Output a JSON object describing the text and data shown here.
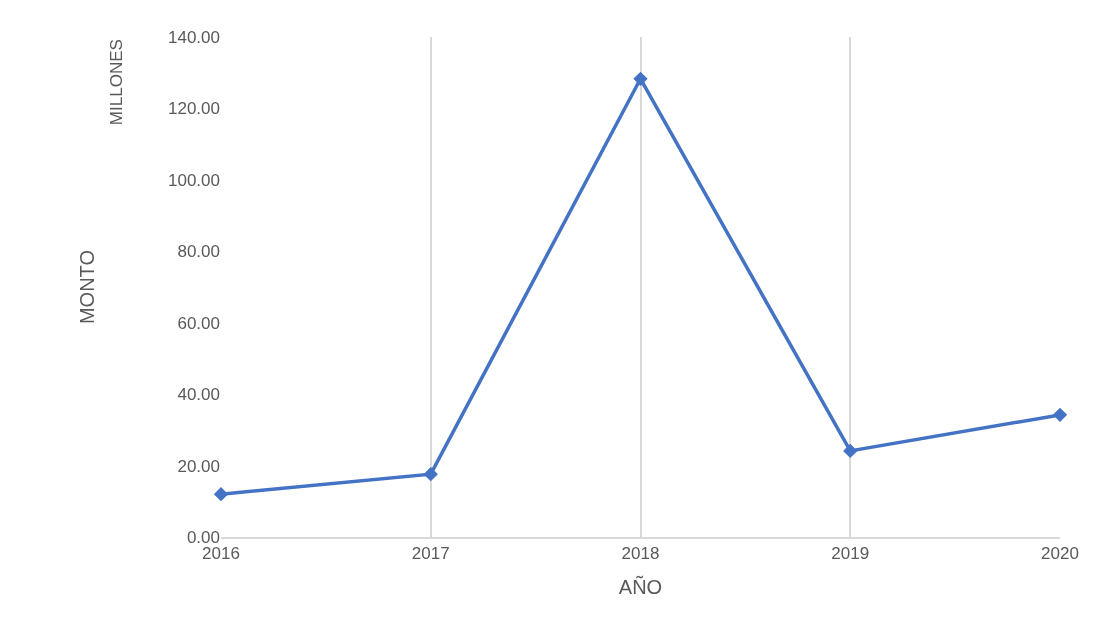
{
  "chart_data": {
    "type": "line",
    "xlabel": "AÑO",
    "ylabel": "MONTO",
    "annotations": [
      "MILLONES"
    ],
    "x": [
      2016,
      2017,
      2018,
      2019,
      2020
    ],
    "series": [
      {
        "color": "#4472c4",
        "values": [
          12.0,
          17.6,
          128.3,
          24.1,
          34.2
        ]
      }
    ],
    "xlim": [
      2016,
      2020
    ],
    "xticks": [
      2016,
      2017,
      2018,
      2019,
      2020
    ],
    "ylim": [
      0,
      140
    ],
    "yticks": [
      {
        "value": 0,
        "label": "0.00"
      },
      {
        "value": 20,
        "label": "20.00"
      },
      {
        "value": 40,
        "label": "40.00"
      },
      {
        "value": 60,
        "label": "60.00"
      },
      {
        "value": 80,
        "label": "80.00"
      },
      {
        "value": 100,
        "label": "100.00"
      },
      {
        "value": 120,
        "label": "120.00"
      },
      {
        "value": 140,
        "label": "140.00"
      }
    ],
    "grid": "x",
    "marker": "diamond",
    "line_style": "solid"
  }
}
